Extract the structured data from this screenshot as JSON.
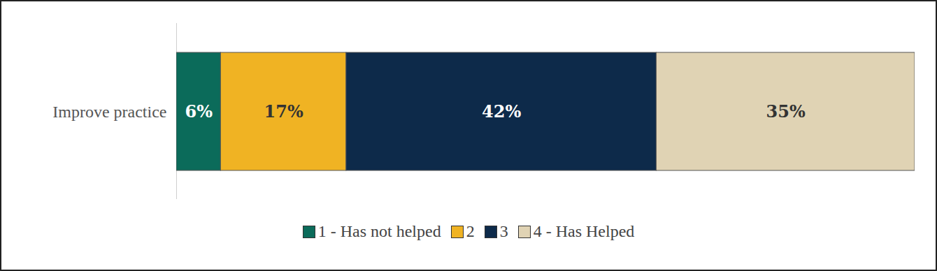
{
  "chart_data": {
    "type": "bar",
    "orientation": "horizontal",
    "stacked": true,
    "data_labels": true,
    "tick_labels": "y",
    "legend": "bottom",
    "categories": [
      "Improve practice"
    ],
    "xlim": [
      0,
      100
    ],
    "series": [
      {
        "name": "1 - Has not helped",
        "color": "#0b6b5a",
        "values": [
          6
        ],
        "value_labels": [
          "6%"
        ]
      },
      {
        "name": "2",
        "color": "#f0b323",
        "values": [
          17
        ],
        "value_labels": [
          "17%"
        ]
      },
      {
        "name": "3",
        "color": "#0d2a4a",
        "values": [
          42
        ],
        "value_labels": [
          "42%"
        ]
      },
      {
        "name": "4 - Has Helped",
        "color": "#e0d3b4",
        "values": [
          35
        ],
        "value_labels": [
          "35%"
        ]
      }
    ]
  }
}
